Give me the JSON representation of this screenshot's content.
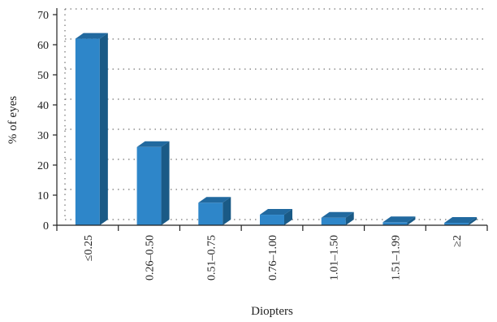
{
  "chart_data": {
    "type": "bar",
    "title": "",
    "xlabel": "Diopters",
    "ylabel": "% of eyes",
    "categories": [
      "≤0.25",
      "0.26–0.50",
      "0.51–0.75",
      "0.76–1.00",
      "1.01–1.50",
      "1.51–1.99",
      "≥2"
    ],
    "values": [
      62,
      26,
      7.5,
      3.5,
      2.5,
      1,
      0.8
    ],
    "ylim": [
      0,
      70
    ],
    "yticks": [
      0,
      10,
      20,
      30,
      40,
      50,
      60,
      70
    ],
    "grid": true,
    "style": "3d-bar",
    "colors": {
      "bar_front": "#2E86C9",
      "bar_side": "#1A5A86",
      "bar_top": "#21699F"
    }
  }
}
